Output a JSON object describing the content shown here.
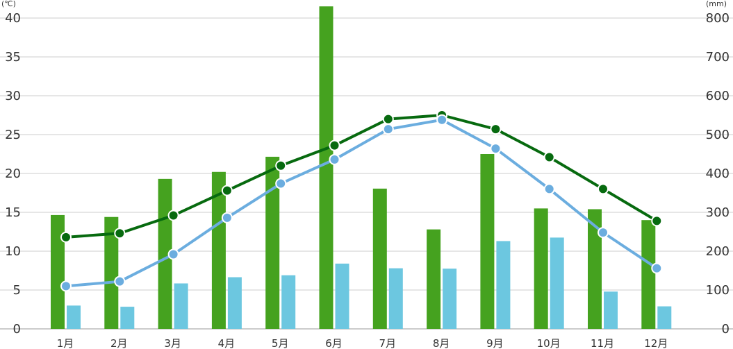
{
  "chart_data": {
    "type": "bar+line",
    "title": "",
    "categories": [
      "1月",
      "2月",
      "3月",
      "4月",
      "5月",
      "6月",
      "7月",
      "8月",
      "9月",
      "10月",
      "11月",
      "12月"
    ],
    "y_left": {
      "unit": "(℃)",
      "range": [
        0,
        40
      ],
      "ticks": [
        0,
        5,
        10,
        15,
        20,
        25,
        30,
        35,
        40
      ]
    },
    "y_right": {
      "unit": "(mm)",
      "range": [
        0,
        800
      ],
      "ticks": [
        0,
        100,
        200,
        300,
        400,
        500,
        600,
        700,
        800
      ]
    },
    "grid": true,
    "legend": "none",
    "bar_series": [
      {
        "axis": "right",
        "color": "#45a21f",
        "values": [
          293,
          288,
          386,
          404,
          443,
          830,
          361,
          256,
          450,
          310,
          308,
          280
        ]
      },
      {
        "axis": "right",
        "color": "#6cc7e0",
        "values": [
          60,
          57,
          117,
          133,
          138,
          168,
          156,
          155,
          226,
          235,
          96,
          58
        ]
      }
    ],
    "line_series": [
      {
        "axis": "left",
        "color": "#076a0f",
        "values": [
          11.8,
          12.3,
          14.6,
          17.8,
          21.0,
          23.6,
          27.0,
          27.5,
          25.7,
          22.1,
          18.0,
          13.9
        ]
      },
      {
        "axis": "left",
        "color": "#6baddf",
        "values": [
          5.5,
          6.1,
          9.6,
          14.3,
          18.7,
          21.8,
          25.7,
          26.9,
          23.2,
          18.0,
          12.4,
          7.8
        ]
      }
    ]
  }
}
